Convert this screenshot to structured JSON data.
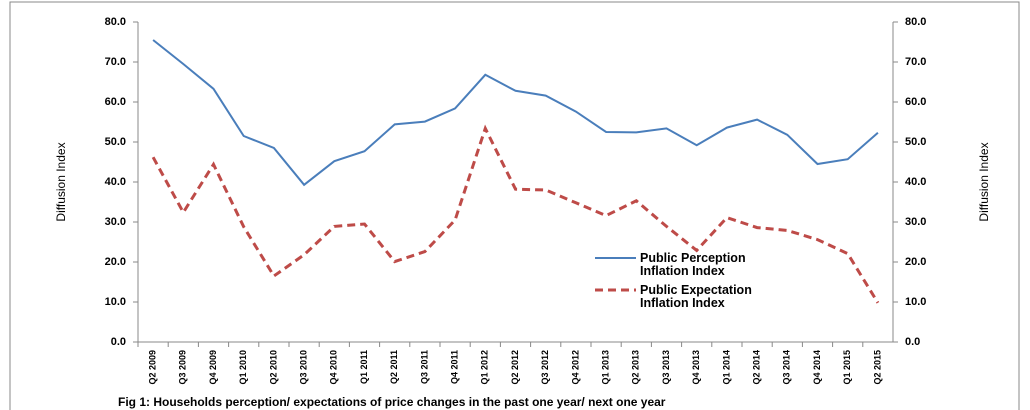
{
  "chart_data": {
    "type": "line",
    "caption": "Fig 1:  Households  perception/ expectations of price changes in the past one year/ next one year",
    "y_label": "Diffusion Index",
    "y2_label": "Diffusion Index",
    "categories": [
      "Q2 2009",
      "Q3 2009",
      "Q4 2009",
      "Q1 2010",
      "Q2 2010",
      "Q3 2010",
      "Q4 2010",
      "Q1 2011",
      "Q2 2011",
      "Q3 2011",
      "Q4 2011",
      "Q1 2012",
      "Q2 2012",
      "Q3 2012",
      "Q4 2012",
      "Q1 2013",
      "Q2 2013",
      "Q3 2013",
      "Q4 2013",
      "Q1 2014",
      "Q2 2014",
      "Q3 2014",
      "Q4 2014",
      "Q1 2015",
      "Q2 2015"
    ],
    "series": [
      {
        "name": "Public Perception Inflation Index",
        "color": "#4a7ebb",
        "dash": false,
        "values": [
          75.5,
          69.5,
          63.3,
          51.5,
          48.5,
          39.3,
          45.2,
          47.7,
          54.4,
          55.1,
          58.4,
          66.8,
          62.8,
          61.6,
          57.6,
          52.5,
          52.4,
          53.4,
          49.2,
          53.6,
          55.6,
          51.8,
          44.5,
          45.7,
          52.3
        ]
      },
      {
        "name": "Public Expectation Inflation Index",
        "color": "#be4b48",
        "dash": true,
        "values": [
          46.2,
          32.4,
          44.4,
          28.8,
          16.5,
          21.8,
          28.9,
          29.5,
          20.1,
          22.6,
          30.5,
          53.4,
          38.2,
          38.0,
          34.8,
          31.6,
          35.3,
          28.9,
          22.9,
          31.1,
          28.6,
          27.9,
          25.6,
          22.1,
          9.8
        ]
      }
    ],
    "ylim": [
      0,
      80
    ],
    "yticks": [
      {
        "value": 0,
        "label": "0.0"
      },
      {
        "value": 10,
        "label": "10.0"
      },
      {
        "value": 20,
        "label": "20.0"
      },
      {
        "value": 30,
        "label": "30.0"
      },
      {
        "value": 40,
        "label": "40.0"
      },
      {
        "value": 50,
        "label": "50.0"
      },
      {
        "value": 60,
        "label": "60.0"
      },
      {
        "value": 70,
        "label": "70.0"
      },
      {
        "value": 80,
        "label": "80.0"
      }
    ],
    "y2lim": [
      0,
      80
    ],
    "y2ticks": [
      {
        "value": 0,
        "label": "0.0"
      },
      {
        "value": 10,
        "label": "10.0"
      },
      {
        "value": 20,
        "label": "20.0"
      },
      {
        "value": 30,
        "label": "30.0"
      },
      {
        "value": 40,
        "label": "40.0"
      },
      {
        "value": 50,
        "label": "50.0"
      },
      {
        "value": 60,
        "label": "60.0"
      },
      {
        "value": 70,
        "label": "70.0"
      },
      {
        "value": 80,
        "label": "80.0"
      }
    ],
    "grid": false
  }
}
